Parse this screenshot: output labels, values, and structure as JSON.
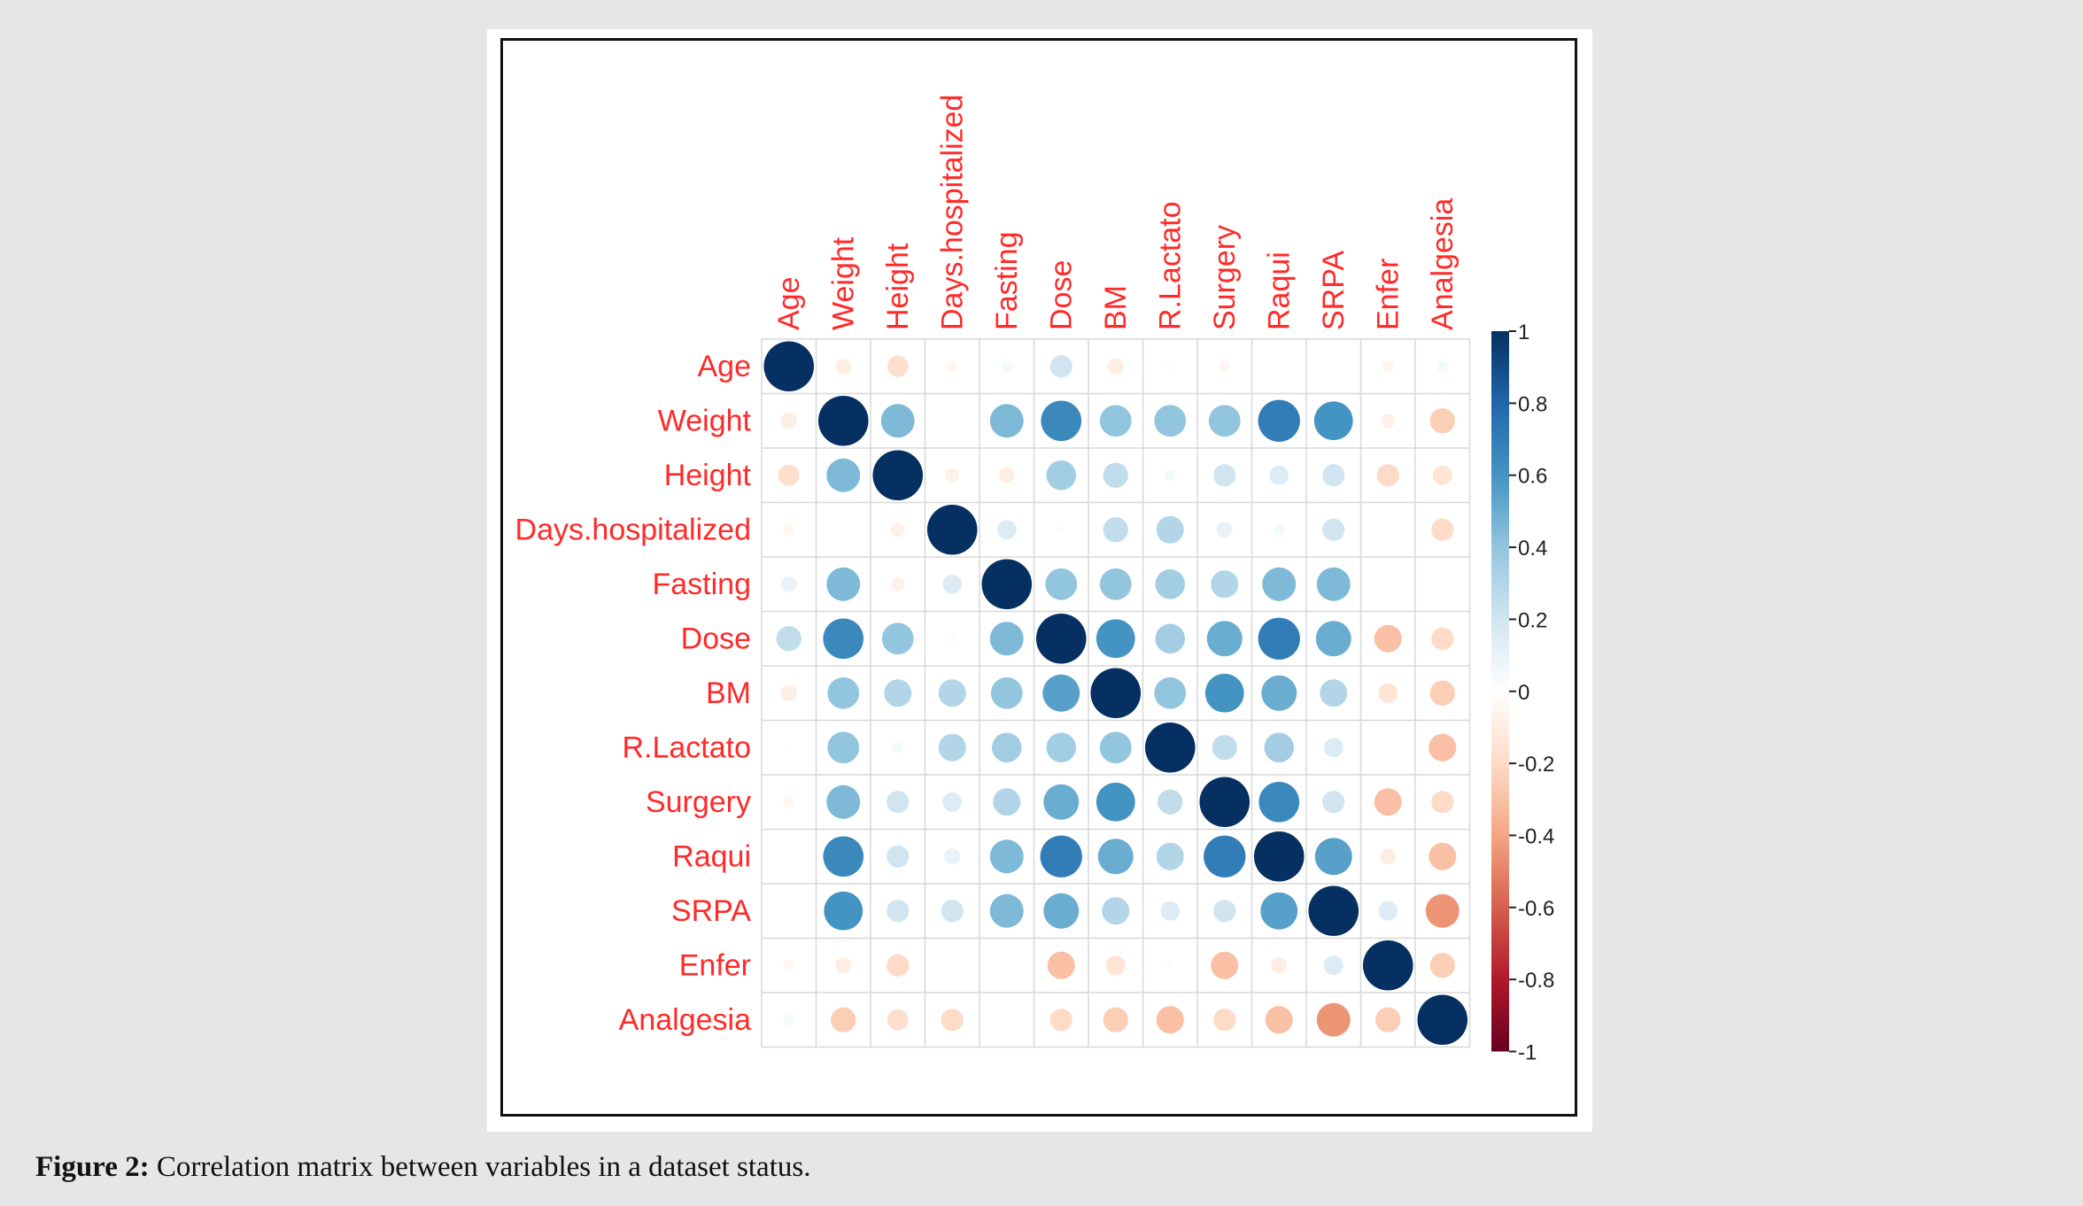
{
  "caption": {
    "label": "Figure 2:",
    "text": " Correlation matrix between variables in a dataset status."
  },
  "chart_data": {
    "type": "heatmap",
    "style": "corrplot-circle",
    "title": "",
    "label_color": "#ff2a2a",
    "variables": [
      "Age",
      "Weight",
      "Height",
      "Days.hospitalized",
      "Fasting",
      "Dose",
      "BM",
      "R.Lactato",
      "Surgery",
      "Raqui",
      "SRPA",
      "Enfer",
      "Analgesia"
    ],
    "matrix": [
      [
        1.0,
        -0.1,
        -0.18,
        -0.05,
        0.05,
        0.2,
        -0.1,
        -0.02,
        -0.05,
        0.0,
        0.0,
        -0.05,
        0.05
      ],
      [
        -0.1,
        1.0,
        0.45,
        0.0,
        0.45,
        0.65,
        0.4,
        0.4,
        0.4,
        0.7,
        0.6,
        -0.08,
        -0.25
      ],
      [
        -0.18,
        0.45,
        1.0,
        -0.08,
        -0.1,
        0.35,
        0.25,
        0.05,
        0.2,
        0.15,
        0.2,
        -0.2,
        -0.15
      ],
      [
        -0.05,
        0.0,
        -0.08,
        1.0,
        0.15,
        0.02,
        0.25,
        0.3,
        0.1,
        0.05,
        0.2,
        0.0,
        -0.2
      ],
      [
        0.1,
        0.45,
        -0.08,
        0.15,
        1.0,
        0.4,
        0.4,
        0.35,
        0.3,
        0.45,
        0.45,
        0.0,
        0.0
      ],
      [
        0.25,
        0.65,
        0.4,
        0.02,
        0.45,
        1.0,
        0.6,
        0.35,
        0.5,
        0.7,
        0.5,
        -0.3,
        -0.2
      ],
      [
        -0.1,
        0.4,
        0.3,
        0.3,
        0.4,
        0.55,
        1.0,
        0.4,
        0.6,
        0.5,
        0.3,
        -0.15,
        -0.25
      ],
      [
        -0.02,
        0.4,
        0.05,
        0.3,
        0.35,
        0.35,
        0.4,
        1.0,
        0.25,
        0.35,
        0.15,
        0.0,
        -0.3
      ],
      [
        -0.05,
        0.45,
        0.2,
        0.15,
        0.3,
        0.5,
        0.6,
        0.25,
        1.0,
        0.65,
        0.2,
        -0.3,
        -0.2
      ],
      [
        0.0,
        0.65,
        0.2,
        0.1,
        0.45,
        0.7,
        0.5,
        0.3,
        0.7,
        1.0,
        0.55,
        -0.1,
        -0.3
      ],
      [
        0.0,
        0.6,
        0.2,
        0.2,
        0.45,
        0.5,
        0.3,
        0.15,
        0.2,
        0.55,
        1.0,
        0.15,
        -0.45
      ],
      [
        -0.05,
        -0.1,
        -0.2,
        0.0,
        0.0,
        -0.3,
        -0.15,
        -0.02,
        -0.3,
        -0.1,
        0.15,
        1.0,
        -0.25
      ],
      [
        0.05,
        -0.25,
        -0.18,
        -0.2,
        0.0,
        -0.2,
        -0.25,
        -0.3,
        -0.2,
        -0.3,
        -0.45,
        -0.25,
        1.0
      ]
    ],
    "colorbar": {
      "range": [
        -1,
        1
      ],
      "ticks": [
        "1",
        "0.8",
        "0.6",
        "0.4",
        "0.2",
        "0",
        "-0.2",
        "-0.4",
        "-0.6",
        "-0.8",
        "-1"
      ],
      "tick_values": [
        1,
        0.8,
        0.6,
        0.4,
        0.2,
        0,
        -0.2,
        -0.4,
        -0.6,
        -0.8,
        -1
      ],
      "color_stops": [
        "#67001f",
        "#b2182b",
        "#d6604d",
        "#f4a582",
        "#fddbc7",
        "#ffffff",
        "#d1e5f0",
        "#92c5de",
        "#4393c3",
        "#2166ac",
        "#053061"
      ]
    }
  }
}
